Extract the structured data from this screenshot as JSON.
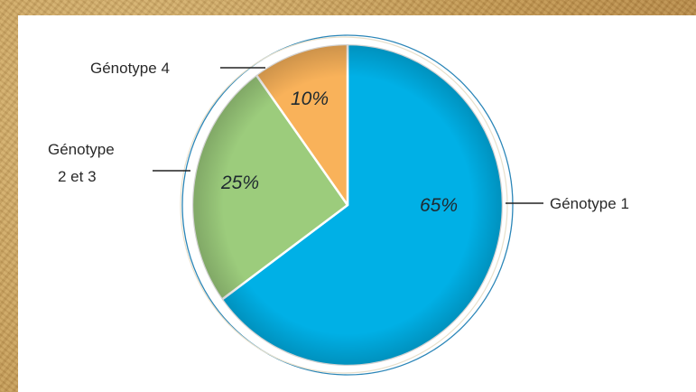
{
  "chart_data": {
    "type": "pie",
    "slices": [
      {
        "label": "Génotype 1",
        "value": 65,
        "value_label": "65%",
        "color": "#00b0e6"
      },
      {
        "label": "Génotype 2 et 3",
        "value": 25,
        "value_label": "25%",
        "color": "#9ccc7c"
      },
      {
        "label": "Génotype 4",
        "value": 10,
        "value_label": "10%",
        "color": "#f9b25a"
      }
    ],
    "labels": {
      "g1": "Génotype 1",
      "g23_line1": "Génotype",
      "g23_line2": "2 et 3",
      "g4": "Génotype 4"
    }
  }
}
